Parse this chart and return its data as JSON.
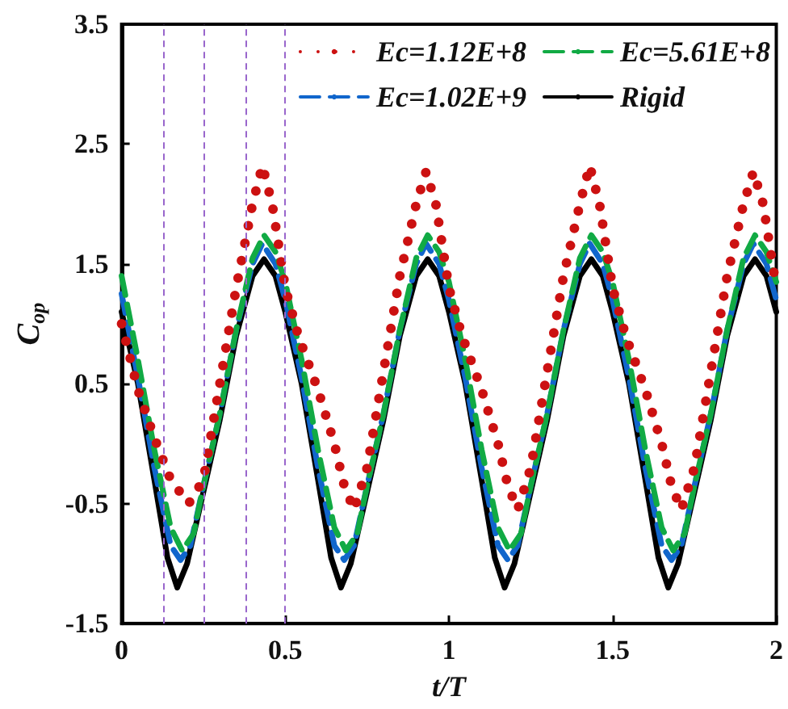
{
  "chart_data": {
    "type": "line",
    "xlabel": "t/T",
    "ylabel": "C$_{op}$",
    "xlim": [
      0,
      2
    ],
    "xticks": [
      0,
      0.5,
      1,
      1.5,
      2
    ],
    "ylim": [
      -1.5,
      3.5
    ],
    "yticks": [
      -1.5,
      -0.5,
      0.5,
      1.5,
      2.5,
      3.5
    ],
    "grid": false,
    "legend": "top right",
    "marker": "none",
    "ref_lines": [
      {
        "axis": "x",
        "value": 0.125,
        "color": "#9966cc",
        "line_style": "dashed"
      },
      {
        "axis": "x",
        "value": 0.25,
        "color": "#9966cc",
        "line_style": "dashed"
      },
      {
        "axis": "x",
        "value": 0.375,
        "color": "#9966cc",
        "line_style": "dashed"
      },
      {
        "axis": "x",
        "value": 0.5,
        "color": "#9966cc",
        "line_style": "dashed"
      }
    ],
    "series": [
      {
        "name": "Ec=1.12E+8",
        "color": "#cc1111",
        "line_style": "dotted",
        "x": [
          0,
          0.05,
          0.1,
          0.15,
          0.205,
          0.25,
          0.3,
          0.35,
          0.4,
          0.43,
          0.46,
          0.5,
          0.54,
          0.6,
          0.65,
          0.68,
          0.71,
          0.75,
          0.8,
          0.85,
          0.9,
          0.93,
          0.96,
          1.0,
          1.04,
          1.1,
          1.15,
          1.18,
          1.21,
          1.25,
          1.3,
          1.35,
          1.4,
          1.43,
          1.46,
          1.5,
          1.54,
          1.6,
          1.65,
          1.68,
          1.71,
          1.75,
          1.8,
          1.85,
          1.9,
          1.93,
          1.96,
          2.0
        ],
        "values": [
          1.0,
          0.45,
          0.05,
          -0.3,
          -0.5,
          -0.3,
          0.5,
          1.3,
          2.0,
          2.32,
          2.0,
          1.3,
          0.9,
          0.45,
          0.0,
          -0.35,
          -0.55,
          -0.2,
          0.6,
          1.4,
          2.0,
          2.27,
          2.0,
          1.3,
          0.9,
          0.45,
          0.0,
          -0.35,
          -0.55,
          -0.2,
          0.6,
          1.4,
          2.0,
          2.32,
          2.0,
          1.3,
          0.9,
          0.45,
          0.0,
          -0.35,
          -0.55,
          -0.2,
          0.6,
          1.4,
          2.0,
          2.27,
          2.0,
          1.3
        ]
      },
      {
        "name": "Ec=5.61E+8",
        "color": "#11aa44",
        "line_style": "dashed",
        "x": [
          0,
          0.05,
          0.1,
          0.15,
          0.185,
          0.22,
          0.25,
          0.3,
          0.35,
          0.4,
          0.435,
          0.47,
          0.5,
          0.55,
          0.6,
          0.65,
          0.685,
          0.72,
          0.75,
          0.8,
          0.85,
          0.9,
          0.935,
          0.97,
          1.0,
          1.05,
          1.1,
          1.15,
          1.185,
          1.22,
          1.25,
          1.3,
          1.35,
          1.4,
          1.435,
          1.47,
          1.5,
          1.55,
          1.6,
          1.65,
          1.685,
          1.72,
          1.75,
          1.8,
          1.85,
          1.9,
          1.935,
          1.97,
          2.0
        ],
        "values": [
          1.4,
          0.7,
          -0.05,
          -0.7,
          -0.89,
          -0.75,
          -0.35,
          0.25,
          0.95,
          1.55,
          1.74,
          1.6,
          1.35,
          0.7,
          -0.05,
          -0.7,
          -0.89,
          -0.75,
          -0.35,
          0.25,
          0.95,
          1.55,
          1.74,
          1.6,
          1.35,
          0.7,
          -0.05,
          -0.7,
          -0.89,
          -0.75,
          -0.35,
          0.25,
          0.95,
          1.55,
          1.74,
          1.6,
          1.35,
          0.7,
          -0.05,
          -0.7,
          -0.89,
          -0.75,
          -0.35,
          0.25,
          0.95,
          1.55,
          1.74,
          1.6,
          1.35
        ]
      },
      {
        "name": "Ec=1.02E+9",
        "color": "#1166cc",
        "line_style": "dashed",
        "x": [
          0,
          0.05,
          0.1,
          0.15,
          0.18,
          0.21,
          0.25,
          0.3,
          0.35,
          0.4,
          0.43,
          0.47,
          0.5,
          0.55,
          0.6,
          0.65,
          0.68,
          0.71,
          0.75,
          0.8,
          0.85,
          0.9,
          0.93,
          0.97,
          1.0,
          1.05,
          1.1,
          1.15,
          1.18,
          1.21,
          1.25,
          1.3,
          1.35,
          1.4,
          1.43,
          1.47,
          1.5,
          1.55,
          1.6,
          1.65,
          1.68,
          1.71,
          1.75,
          1.8,
          1.85,
          1.9,
          1.93,
          1.97,
          2.0
        ],
        "values": [
          1.25,
          0.55,
          -0.2,
          -0.85,
          -0.97,
          -0.85,
          -0.35,
          0.25,
          0.95,
          1.5,
          1.67,
          1.5,
          1.2,
          0.55,
          -0.2,
          -0.85,
          -0.97,
          -0.85,
          -0.35,
          0.25,
          0.95,
          1.5,
          1.67,
          1.5,
          1.2,
          0.55,
          -0.2,
          -0.85,
          -0.97,
          -0.85,
          -0.35,
          0.25,
          0.95,
          1.5,
          1.67,
          1.5,
          1.2,
          0.55,
          -0.2,
          -0.85,
          -0.97,
          -0.85,
          -0.35,
          0.25,
          0.95,
          1.5,
          1.67,
          1.5,
          1.2
        ]
      },
      {
        "name": "Rigid",
        "color": "#000000",
        "line_style": "solid",
        "x": [
          0,
          0.05,
          0.1,
          0.14,
          0.17,
          0.2,
          0.25,
          0.3,
          0.35,
          0.4,
          0.435,
          0.47,
          0.5,
          0.55,
          0.6,
          0.64,
          0.67,
          0.7,
          0.75,
          0.8,
          0.85,
          0.9,
          0.935,
          0.97,
          1.0,
          1.05,
          1.1,
          1.14,
          1.17,
          1.2,
          1.25,
          1.3,
          1.35,
          1.4,
          1.435,
          1.47,
          1.5,
          1.55,
          1.6,
          1.64,
          1.67,
          1.7,
          1.75,
          1.8,
          1.85,
          1.9,
          1.935,
          1.97,
          2.0
        ],
        "values": [
          1.1,
          0.5,
          -0.3,
          -0.95,
          -1.2,
          -1.0,
          -0.4,
          0.2,
          0.9,
          1.4,
          1.54,
          1.4,
          1.1,
          0.5,
          -0.3,
          -0.95,
          -1.2,
          -1.0,
          -0.4,
          0.2,
          0.9,
          1.4,
          1.54,
          1.4,
          1.1,
          0.5,
          -0.3,
          -0.95,
          -1.2,
          -1.0,
          -0.4,
          0.2,
          0.9,
          1.4,
          1.54,
          1.4,
          1.1,
          0.5,
          -0.3,
          -0.95,
          -1.2,
          -1.0,
          -0.4,
          0.2,
          0.9,
          1.4,
          1.54,
          1.4,
          1.1
        ]
      }
    ]
  }
}
